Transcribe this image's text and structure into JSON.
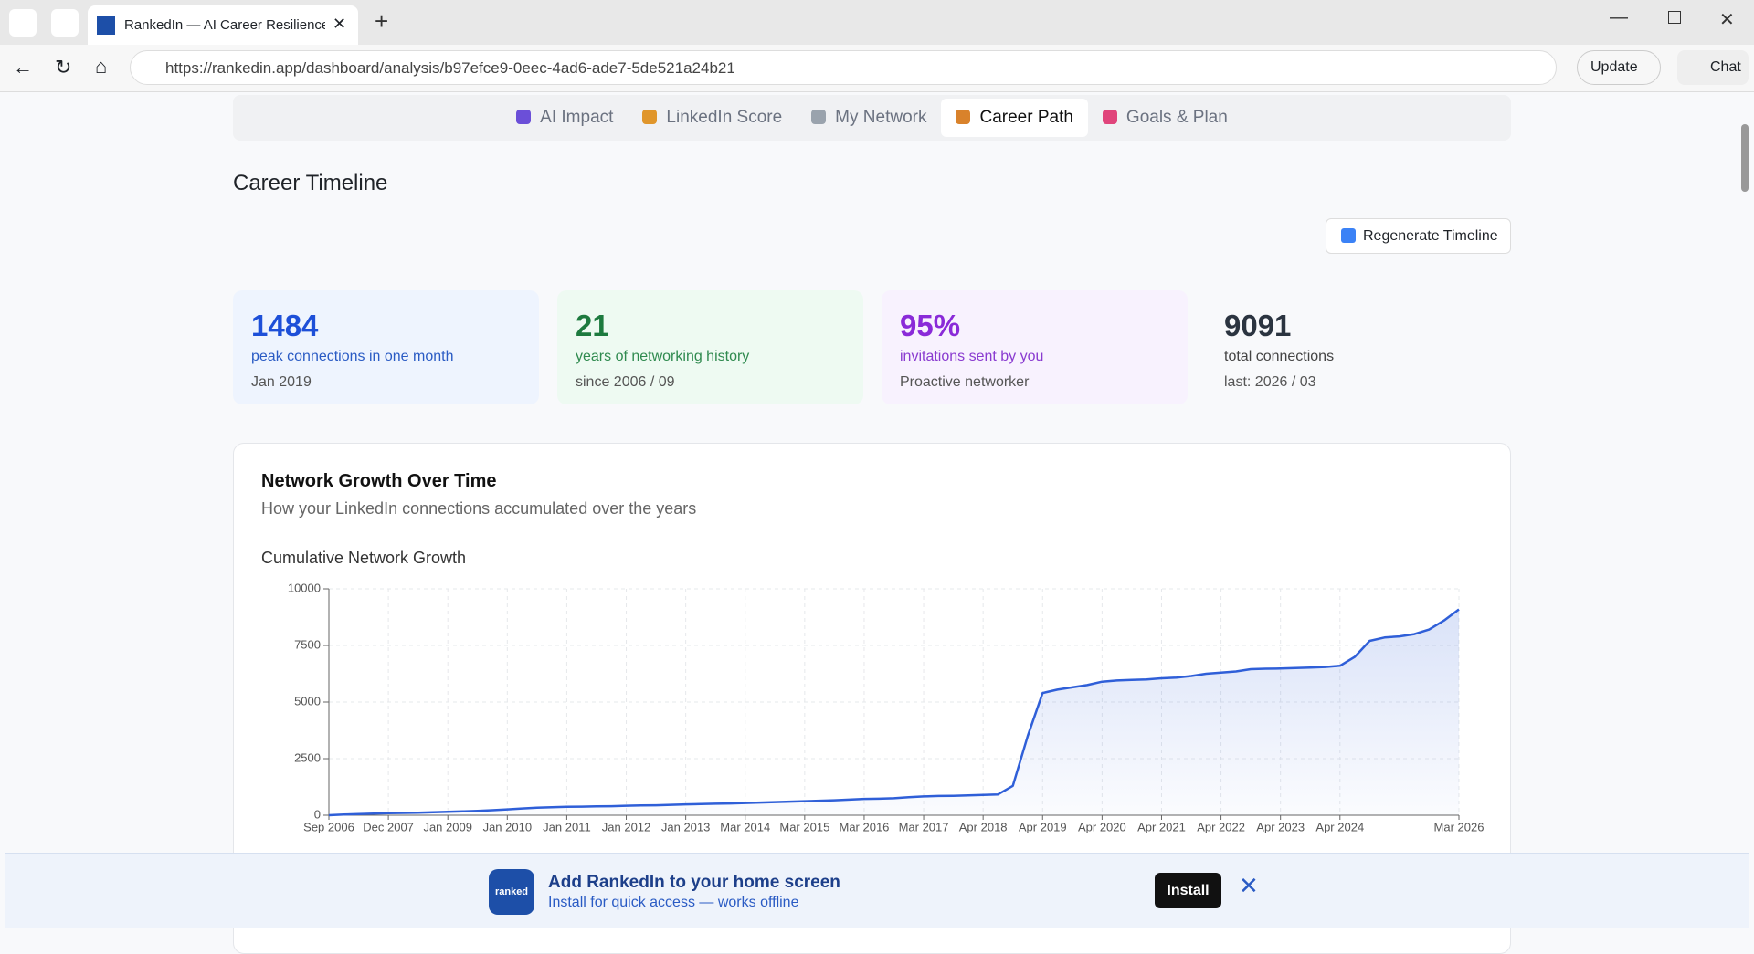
{
  "browser": {
    "tab_title": "RankedIn — AI Career Resilience S",
    "url": "https://rankedin.app/dashboard/analysis/b97efce9-0eec-4ad6-ade7-5de521a24b21",
    "update": "Update",
    "chat": "Chat"
  },
  "nav": [
    "AI Impact",
    "LinkedIn Score",
    "My Network",
    "Career Path",
    "Goals & Plan"
  ],
  "heading": "Career Timeline",
  "regenerate": "Regenerate Timeline",
  "stats": [
    {
      "value": "1484",
      "label": "peak connections in one month",
      "sub": "Jan 2019"
    },
    {
      "value": "21",
      "label": "years of networking history",
      "sub": "since 2006 / 09"
    },
    {
      "value": "95%",
      "label": "invitations sent by you",
      "sub": "Proactive networker"
    },
    {
      "value": "9091",
      "label": "total connections",
      "sub": "last: 2026 / 03"
    }
  ],
  "card": {
    "title": "Network Growth Over Time",
    "subtitle": "How your LinkedIn connections accumulated over the years"
  },
  "chart_data": {
    "type": "line",
    "title": "Cumulative Network Growth",
    "color": "#2f5fd8",
    "grid": true,
    "categories": [
      "Sep 2006",
      null,
      null,
      null,
      "Dec 2007",
      null,
      null,
      null,
      "Jan 2009",
      null,
      null,
      null,
      "Jan 2010",
      null,
      null,
      null,
      "Jan 2011",
      null,
      null,
      null,
      "Jan 2012",
      null,
      null,
      null,
      "Jan 2013",
      null,
      null,
      null,
      "Mar 2014",
      null,
      null,
      null,
      "Mar 2015",
      null,
      null,
      null,
      "Mar 2016",
      null,
      null,
      null,
      "Mar 2017",
      null,
      null,
      null,
      "Apr 2018",
      null,
      null,
      null,
      "Apr 2019",
      null,
      null,
      null,
      "Apr 2020",
      null,
      null,
      null,
      "Apr 2021",
      null,
      null,
      null,
      "Apr 2022",
      null,
      null,
      null,
      "Apr 2023",
      null,
      null,
      null,
      "Apr 2024",
      null,
      null,
      null,
      null,
      null,
      null,
      null,
      "Mar 2026"
    ],
    "values": [
      0,
      30,
      50,
      70,
      90,
      100,
      110,
      130,
      150,
      170,
      190,
      220,
      260,
      300,
      330,
      350,
      370,
      380,
      390,
      400,
      420,
      430,
      440,
      460,
      480,
      490,
      510,
      520,
      540,
      560,
      580,
      600,
      620,
      640,
      660,
      690,
      720,
      730,
      750,
      800,
      830,
      850,
      860,
      880,
      900,
      920,
      1300,
      3500,
      5400,
      5550,
      5650,
      5750,
      5900,
      5950,
      5980,
      6000,
      6050,
      6080,
      6150,
      6250,
      6300,
      6350,
      6450,
      6470,
      6480,
      6500,
      6520,
      6550,
      6600,
      7000,
      7700,
      7850,
      7900,
      8000,
      8200,
      8600,
      9091
    ],
    "ylim": [
      0,
      10000
    ],
    "yticks": [
      0,
      2500,
      5000,
      7500,
      10000
    ]
  },
  "banner": {
    "title": "Add RankedIn to your home screen",
    "subtitle": "Install for quick access — works offline",
    "install": "Install",
    "logo": "ranked"
  }
}
